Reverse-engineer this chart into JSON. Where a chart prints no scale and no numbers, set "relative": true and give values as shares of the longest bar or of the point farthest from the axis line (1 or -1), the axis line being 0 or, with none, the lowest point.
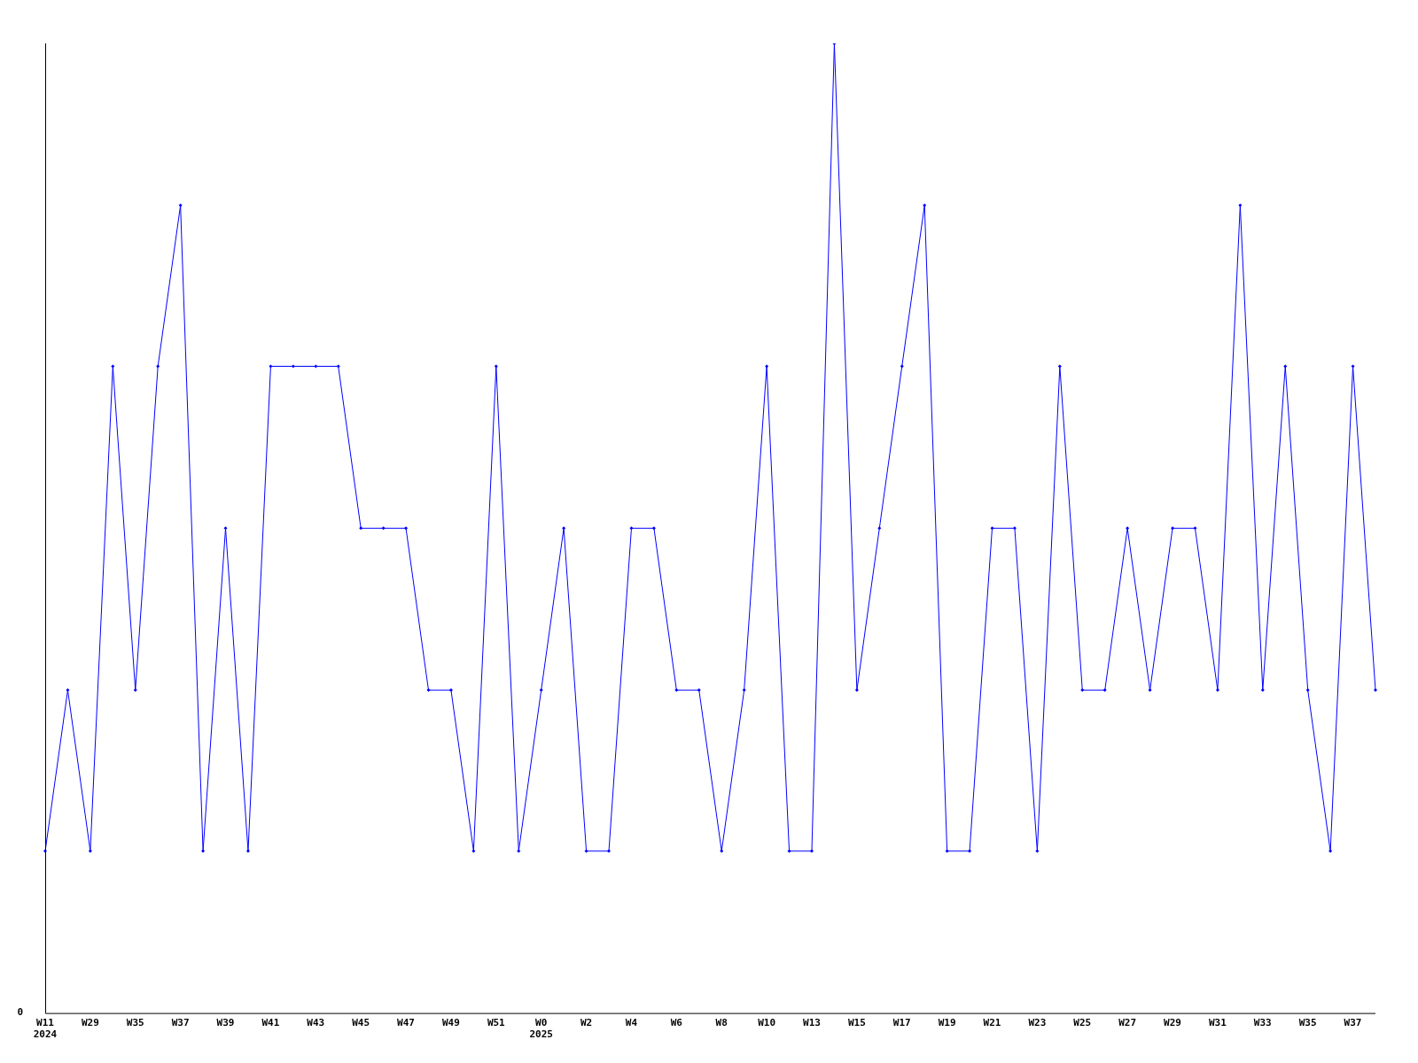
{
  "chart_data": {
    "type": "line",
    "relative": true,
    "grid": false,
    "legend": false,
    "marker": "diamond",
    "line_style": "solid",
    "categories": [
      "W11\n2024",
      null,
      "W29",
      null,
      "W35",
      null,
      "W37",
      null,
      "W39",
      null,
      "W41",
      null,
      "W43",
      null,
      "W45",
      null,
      "W47",
      null,
      "W49",
      null,
      "W51",
      null,
      "W0\n2025",
      null,
      "W2",
      null,
      "W4",
      null,
      "W6",
      null,
      "W8",
      null,
      "W10",
      null,
      "W13",
      null,
      "W15",
      null,
      "W17",
      null,
      "W19",
      null,
      "W21",
      null,
      "W23",
      null,
      "W25",
      null,
      "W27",
      null,
      "W29",
      null,
      "W31",
      null,
      "W33",
      null,
      "W35",
      null,
      "W37",
      null
    ],
    "series": [
      {
        "color": "#0000ff",
        "values": [
          0.167,
          0.333,
          0.167,
          0.667,
          0.333,
          0.667,
          0.833,
          0.167,
          0.5,
          0.167,
          0.667,
          0.667,
          0.667,
          0.667,
          0.5,
          0.5,
          0.5,
          0.333,
          0.333,
          0.167,
          0.667,
          0.167,
          0.333,
          0.5,
          0.167,
          0.167,
          0.5,
          0.5,
          0.333,
          0.333,
          0.167,
          0.333,
          0.667,
          0.167,
          0.167,
          1,
          0.333,
          0.5,
          0.667,
          0.833,
          0.167,
          0.167,
          0.5,
          0.5,
          0.167,
          0.667,
          0.333,
          0.333,
          0.5,
          0.333,
          0.5,
          0.5,
          0.333,
          0.833,
          0.333,
          0.667,
          0.333,
          0.167,
          0.667,
          0.333
        ]
      }
    ],
    "annotations": [
      "0"
    ]
  }
}
